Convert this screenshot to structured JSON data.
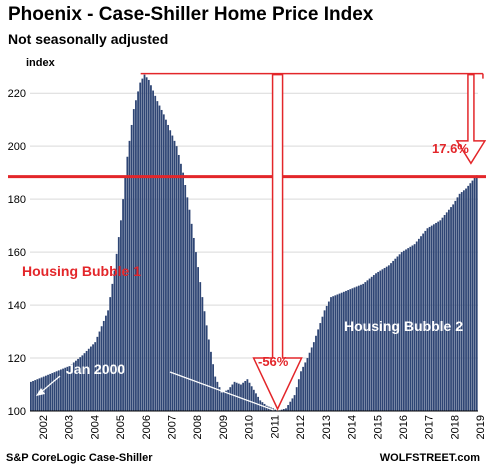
{
  "header": {
    "title": "Phoenix - Case-Shiller Home Price Index",
    "subtitle": "Not seasonally adjusted"
  },
  "footer": {
    "source": "S&P CoreLogic Case-Shiller",
    "brand": "WOLFSTREET.com"
  },
  "colors": {
    "bars": "#2e4574",
    "annotation": "#e3262a",
    "reference_line": "#e3262a"
  },
  "chart_data": {
    "type": "bar",
    "ylabel": "index",
    "ylim": [
      100,
      228
    ],
    "yticks": [
      100,
      120,
      140,
      160,
      180,
      200,
      220
    ],
    "xticks": [
      "2002",
      "2003",
      "2004",
      "2005",
      "2006",
      "2007",
      "2008",
      "2009",
      "2010",
      "2011",
      "2012",
      "2013",
      "2014",
      "2015",
      "2016",
      "2017",
      "2018",
      "2019"
    ],
    "grid": true,
    "frequency": "monthly",
    "anchors": [
      [
        "2002-01",
        111
      ],
      [
        "2002-07",
        113
      ],
      [
        "2003-01",
        115
      ],
      [
        "2003-07",
        117
      ],
      [
        "2004-01",
        121
      ],
      [
        "2004-07",
        126
      ],
      [
        "2005-01",
        138
      ],
      [
        "2005-04",
        153
      ],
      [
        "2005-07",
        172
      ],
      [
        "2005-10",
        196
      ],
      [
        "2006-01",
        214
      ],
      [
        "2006-04",
        224
      ],
      [
        "2006-06",
        227
      ],
      [
        "2006-08",
        225
      ],
      [
        "2006-12",
        217
      ],
      [
        "2007-03",
        212
      ],
      [
        "2007-06",
        206
      ],
      [
        "2007-09",
        200
      ],
      [
        "2007-12",
        190
      ],
      [
        "2008-03",
        176
      ],
      [
        "2008-06",
        160
      ],
      [
        "2008-09",
        143
      ],
      [
        "2008-12",
        127
      ],
      [
        "2009-03",
        113
      ],
      [
        "2009-06",
        107
      ],
      [
        "2009-09",
        108
      ],
      [
        "2009-12",
        111
      ],
      [
        "2010-03",
        110
      ],
      [
        "2010-06",
        112
      ],
      [
        "2010-09",
        108
      ],
      [
        "2010-12",
        104
      ],
      [
        "2011-03",
        102
      ],
      [
        "2011-06",
        101
      ],
      [
        "2011-08",
        100
      ],
      [
        "2011-12",
        101
      ],
      [
        "2012-04",
        106
      ],
      [
        "2012-07",
        115
      ],
      [
        "2012-10",
        120
      ],
      [
        "2013-01",
        126
      ],
      [
        "2013-06",
        138
      ],
      [
        "2013-09",
        143
      ],
      [
        "2013-12",
        144
      ],
      [
        "2014-06",
        146
      ],
      [
        "2014-12",
        148
      ],
      [
        "2015-06",
        152
      ],
      [
        "2015-12",
        155
      ],
      [
        "2016-06",
        160
      ],
      [
        "2016-12",
        163
      ],
      [
        "2017-06",
        169
      ],
      [
        "2017-12",
        172
      ],
      [
        "2018-06",
        178
      ],
      [
        "2018-09",
        182
      ],
      [
        "2018-12",
        184
      ],
      [
        "2019-03",
        187
      ],
      [
        "2019-05",
        189
      ]
    ],
    "reference_line": 188.5,
    "annotations": {
      "bubble1": "Housing Bubble 1",
      "bubble2": "Housing Bubble 2",
      "jan2000": "Jan 2000",
      "decline": "-56%",
      "gain": "17.6%"
    }
  }
}
